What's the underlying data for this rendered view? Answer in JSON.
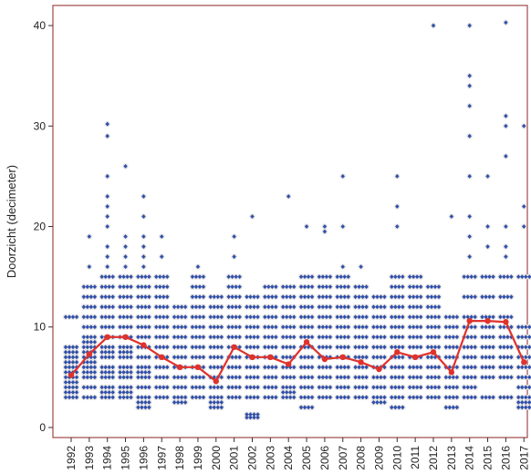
{
  "chart_data": {
    "type": "scatter",
    "title": "",
    "ylabel": "Doorzicht (decimeter)",
    "xlabel": "",
    "ylim": [
      -1,
      42
    ],
    "yticks": [
      0,
      10,
      20,
      30,
      40
    ],
    "ytick_labels": [
      "0",
      "10",
      "20",
      "30",
      "40"
    ],
    "categories": [
      "1992",
      "1993",
      "1994",
      "1995",
      "1996",
      "1997",
      "1998",
      "1999",
      "2000",
      "2001",
      "2002",
      "2003",
      "2004",
      "2005",
      "2006",
      "2007",
      "2008",
      "2009",
      "2010",
      "2011",
      "2012",
      "2013",
      "2014",
      "2015",
      "2016",
      "2017"
    ],
    "series": [
      {
        "kind": "observations",
        "color": "#2f4fa8",
        "points": [
          {
            "year": "1992",
            "values": [
              3,
              3.5,
              4,
              4.5,
              5,
              5.5,
              6,
              6.5,
              7,
              7.5,
              8,
              11
            ]
          },
          {
            "year": "1993",
            "values": [
              3,
              4,
              5,
              5.5,
              6,
              6.5,
              7,
              7.5,
              8,
              8.5,
              9,
              10,
              11,
              12,
              13,
              14,
              16,
              19
            ]
          },
          {
            "year": "1994",
            "values": [
              3,
              3.5,
              4,
              5,
              5.5,
              6,
              7,
              7.5,
              8,
              9,
              10,
              11,
              12,
              13,
              14,
              15,
              16,
              17,
              18,
              20,
              21,
              22,
              23,
              25,
              29,
              30.2
            ]
          },
          {
            "year": "1995",
            "values": [
              3,
              3.5,
              4,
              5,
              5.5,
              6,
              7,
              7.5,
              8,
              9,
              10,
              11,
              12,
              13,
              14,
              15,
              16,
              17,
              18,
              19,
              26
            ]
          },
          {
            "year": "1996",
            "values": [
              2,
              2.5,
              3,
              4,
              5,
              5.5,
              6,
              7,
              8,
              9,
              10,
              11,
              12,
              13,
              14,
              15,
              16,
              17,
              18,
              19,
              21,
              23
            ]
          },
          {
            "year": "1997",
            "values": [
              3,
              4,
              5,
              6,
              7,
              8,
              9,
              10,
              11,
              12,
              13,
              14,
              15,
              17,
              19
            ]
          },
          {
            "year": "1998",
            "values": [
              2.5,
              3,
              4,
              5,
              6,
              7,
              8,
              9,
              10,
              11,
              12
            ]
          },
          {
            "year": "1999",
            "values": [
              3,
              4,
              5,
              6,
              7,
              8,
              9,
              10,
              11,
              12,
              13,
              14,
              15,
              16
            ]
          },
          {
            "year": "2000",
            "values": [
              2,
              2.5,
              3,
              4,
              5,
              6,
              7,
              8,
              9,
              10,
              11,
              12,
              13
            ]
          },
          {
            "year": "2001",
            "values": [
              3,
              4,
              5,
              6,
              7,
              8,
              9,
              10,
              11,
              12,
              13,
              14,
              15,
              17,
              19
            ]
          },
          {
            "year": "2002",
            "values": [
              1,
              1.3,
              3,
              4,
              5,
              6,
              7,
              8,
              9,
              10,
              11,
              12,
              13,
              21
            ]
          },
          {
            "year": "2003",
            "values": [
              3,
              4,
              5,
              6,
              7,
              8,
              9,
              10,
              11,
              12,
              13,
              14
            ]
          },
          {
            "year": "2004",
            "values": [
              3,
              3.5,
              4,
              5,
              6,
              7,
              8,
              9,
              10,
              11,
              12,
              13,
              14,
              23
            ]
          },
          {
            "year": "2005",
            "values": [
              2,
              3,
              4,
              5,
              6,
              7,
              8,
              9,
              10,
              11,
              12,
              13,
              14,
              15,
              20
            ]
          },
          {
            "year": "2006",
            "values": [
              3,
              4,
              5,
              6,
              7,
              8,
              9,
              10,
              11,
              12,
              13,
              14,
              15,
              19.5,
              20
            ]
          },
          {
            "year": "2007",
            "values": [
              3,
              4,
              5,
              6,
              7,
              8,
              9,
              10,
              11,
              12,
              13,
              14,
              15,
              16,
              20,
              25
            ]
          },
          {
            "year": "2008",
            "values": [
              3,
              4,
              5,
              6,
              7,
              8,
              9,
              10,
              11,
              12,
              13,
              14,
              16
            ]
          },
          {
            "year": "2009",
            "values": [
              2.5,
              3,
              4,
              5,
              6,
              7,
              8,
              9,
              10,
              11,
              12,
              13
            ]
          },
          {
            "year": "2010",
            "values": [
              2,
              3,
              4,
              5,
              6,
              7,
              8,
              9,
              10,
              11,
              12,
              13,
              14,
              15,
              20,
              22,
              25
            ]
          },
          {
            "year": "2011",
            "values": [
              3,
              4,
              5,
              6,
              7,
              8,
              9,
              10,
              11,
              12,
              13,
              14,
              15
            ]
          },
          {
            "year": "2012",
            "values": [
              3,
              4,
              5,
              6,
              7,
              8,
              9,
              10,
              11,
              12,
              13,
              14,
              40
            ]
          },
          {
            "year": "2013",
            "values": [
              2,
              3,
              4,
              5,
              6,
              7,
              8,
              9,
              10,
              11,
              21
            ]
          },
          {
            "year": "2014",
            "values": [
              3,
              4,
              5,
              6,
              7,
              8,
              9,
              10,
              11,
              13,
              15,
              17,
              19,
              21,
              25,
              29,
              32,
              34,
              35,
              40
            ]
          },
          {
            "year": "2015",
            "values": [
              3,
              5,
              6,
              7,
              8,
              9,
              10,
              11,
              13,
              15,
              18,
              20,
              25
            ]
          },
          {
            "year": "2016",
            "values": [
              3,
              5,
              6,
              7,
              8,
              9,
              10,
              11,
              13,
              15,
              17,
              18,
              20,
              27,
              30,
              31,
              40.3
            ]
          },
          {
            "year": "2017",
            "values": [
              2,
              2.5,
              3,
              4,
              5,
              6,
              7,
              8,
              9,
              10,
              15,
              20,
              22,
              30
            ]
          }
        ]
      },
      {
        "kind": "yearly-median",
        "color": "#e0322c",
        "values": [
          5.2,
          7.3,
          9.0,
          9.0,
          8.2,
          7.0,
          6.0,
          6.0,
          4.6,
          8.0,
          7.0,
          7.0,
          6.3,
          8.5,
          6.8,
          7.0,
          6.5,
          5.8,
          7.5,
          7.0,
          7.5,
          5.5,
          10.6,
          10.6,
          10.5,
          6.5
        ]
      }
    ],
    "grid": false,
    "legend": "none"
  }
}
